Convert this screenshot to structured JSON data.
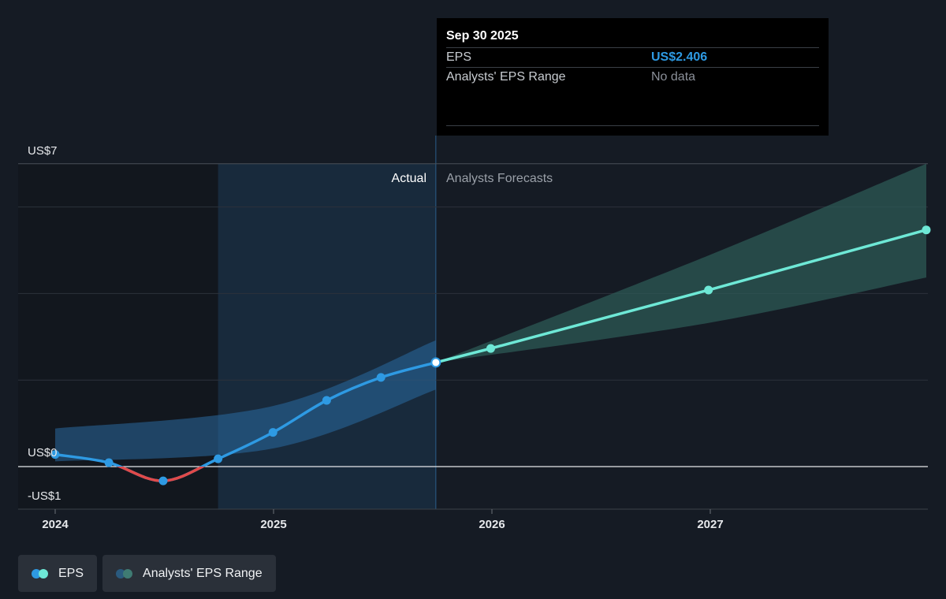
{
  "chart_data": {
    "type": "line",
    "y_tick_labels": [
      "US$7",
      "US$0",
      "-US$1"
    ],
    "ylim": [
      -1,
      7
    ],
    "x_tick_labels": [
      "2024",
      "2025",
      "2026",
      "2027"
    ],
    "region_labels": {
      "actual": "Actual",
      "forecast": "Analysts Forecasts"
    },
    "series": [
      {
        "name": "EPS",
        "kind": "actual",
        "x": [
          "2024-01-01",
          "2024-03-31",
          "2024-06-30",
          "2024-09-30",
          "2024-12-31",
          "2025-03-31",
          "2025-06-30",
          "2025-09-30"
        ],
        "values": [
          0.28,
          0.09,
          -0.33,
          0.18,
          0.79,
          1.53,
          2.06,
          2.406
        ]
      },
      {
        "name": "EPS",
        "kind": "forecast",
        "x": [
          "2025-09-30",
          "2025-12-31",
          "2026-12-31",
          "2027-12-31"
        ],
        "values": [
          2.406,
          2.73,
          4.08,
          5.47
        ]
      },
      {
        "name": "Analysts' EPS Range",
        "kind": "band-past",
        "x": [
          "2024-01-01",
          "2024-12-31",
          "2025-09-30"
        ],
        "upper": [
          0.88,
          1.4,
          2.92
        ],
        "lower": [
          0.12,
          0.42,
          1.78
        ]
      },
      {
        "name": "Analysts' EPS Range",
        "kind": "band-forecast",
        "x": [
          "2025-09-30",
          "2026-12-31",
          "2027-12-31"
        ],
        "upper": [
          2.406,
          4.88,
          7.0
        ],
        "lower": [
          2.406,
          3.32,
          4.37
        ]
      }
    ],
    "highlight_period": [
      "2024-09-30",
      "2025-09-30"
    ],
    "grid": true,
    "legend_position": "bottom-left"
  },
  "tooltip": {
    "date": "Sep 30 2025",
    "rows": [
      {
        "label": "EPS",
        "value": "US$2.406"
      },
      {
        "label": "Analysts' EPS Range",
        "value": "No data"
      }
    ]
  },
  "legend": [
    {
      "label": "EPS",
      "colors": [
        "#2e9ae3",
        "#6ee8d6"
      ]
    },
    {
      "label": "Analysts' EPS Range",
      "colors": [
        "#2a5a7e",
        "#3f7b73"
      ]
    }
  ],
  "colors": {
    "eps_actual": "#2e9ae3",
    "eps_negative": "#e04a4a",
    "eps_forecast": "#6ee8d6",
    "band_past": "#2a6aa0",
    "band_forecast": "#2e5c58",
    "highlight": "#1d3a56"
  }
}
